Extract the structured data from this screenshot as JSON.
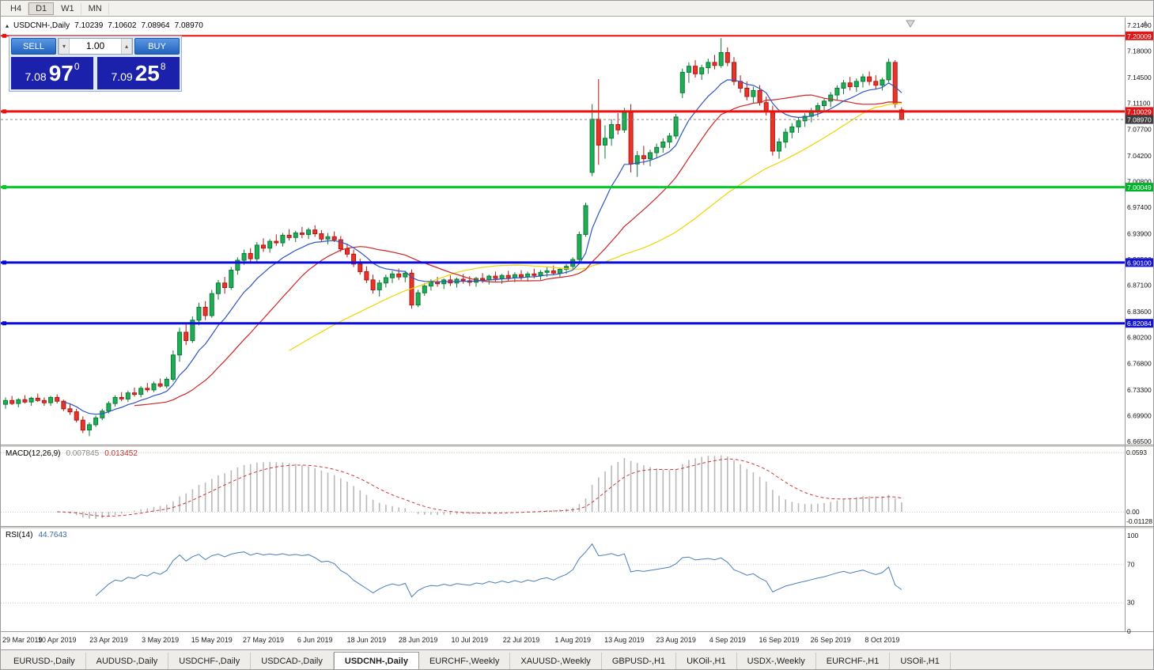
{
  "toolbar": {
    "timeframes": [
      "H4",
      "D1",
      "W1",
      "MN"
    ],
    "active": "D1"
  },
  "header": {
    "symbol": "USDCNH-,Daily",
    "open": "7.10239",
    "high": "7.10602",
    "low": "7.08964",
    "close": "7.08970"
  },
  "trade_panel": {
    "sell_label": "SELL",
    "buy_label": "BUY",
    "volume": "1.00",
    "sell_price": {
      "prefix": "7.08",
      "big": "97",
      "sup": "0"
    },
    "buy_price": {
      "prefix": "7.09",
      "big": "25",
      "sup": "8"
    }
  },
  "price_axis": {
    "labels": [
      "7.21400",
      "7.18000",
      "7.14500",
      "7.11100",
      "7.07700",
      "7.04200",
      "7.00800",
      "6.97400",
      "6.93900",
      "6.90500",
      "6.87100",
      "6.83600",
      "6.80200",
      "6.76800",
      "6.73300",
      "6.69900",
      "6.66500"
    ],
    "tags": [
      {
        "text": "7.20009",
        "price": 7.20009,
        "color": "#e01515"
      },
      {
        "text": "7.10029",
        "price": 7.10029,
        "color": "#e01515"
      },
      {
        "text": "7.08970",
        "price": 7.0897,
        "color": "#3c3c3c"
      },
      {
        "text": "7.00049",
        "price": 7.00049,
        "color": "#00b42a"
      },
      {
        "text": "6.90100",
        "price": 6.901,
        "color": "#1515cf"
      },
      {
        "text": "6.82084",
        "price": 6.82084,
        "color": "#1515cf"
      }
    ]
  },
  "macd_panel": {
    "label": "MACD(12,26,9)",
    "value1": "0.007845",
    "value2": "0.013452",
    "axis": [
      "0.0593",
      "0.00",
      "-0.01128"
    ]
  },
  "rsi_panel": {
    "label": "RSI(14)",
    "value": "44.7643",
    "axis": [
      "100",
      "70",
      "30",
      "0"
    ]
  },
  "date_axis": [
    "29 Mar 2019",
    "10 Apr 2019",
    "23 Apr 2019",
    "3 May 2019",
    "15 May 2019",
    "27 May 2019",
    "6 Jun 2019",
    "18 Jun 2019",
    "28 Jun 2019",
    "10 Jul 2019",
    "22 Jul 2019",
    "1 Aug 2019",
    "13 Aug 2019",
    "23 Aug 2019",
    "4 Sep 2019",
    "16 Sep 2019",
    "26 Sep 2019",
    "8 Oct 2019"
  ],
  "tabs": [
    {
      "label": "EURUSD-,Daily",
      "active": false
    },
    {
      "label": "AUDUSD-,Daily",
      "active": false
    },
    {
      "label": "USDCHF-,Daily",
      "active": false
    },
    {
      "label": "USDCAD-,Daily",
      "active": false
    },
    {
      "label": "USDCNH-,Daily",
      "active": true
    },
    {
      "label": "EURCHF-,Weekly",
      "active": false
    },
    {
      "label": "XAUUSD-,Weekly",
      "active": false
    },
    {
      "label": "GBPUSD-,H1",
      "active": false
    },
    {
      "label": "UKOil-,H1",
      "active": false
    },
    {
      "label": "USDX-,Weekly",
      "active": false
    },
    {
      "label": "EURCHF-,H1",
      "active": false
    },
    {
      "label": "USOil-,H1",
      "active": false
    }
  ],
  "chart_data": {
    "type": "candlestick",
    "symbol": "USDCNH",
    "timeframe": "Daily",
    "ylim": [
      6.665,
      7.214
    ],
    "date_labels_every": 8,
    "colors": {
      "up_fill": "#1fae55",
      "up_border": "#0c7a37",
      "down_fill": "#e8352b",
      "down_border": "#b31410",
      "macd_bar": "#b9b9b9",
      "macd_signal": "#d03838",
      "rsi_line": "#4a7ebb"
    },
    "moving_averages": [
      {
        "type": "ema",
        "period": 10,
        "color": "#2e55c5"
      },
      {
        "type": "sma",
        "period": 21,
        "color": "#cf2525"
      },
      {
        "type": "sma",
        "period": 45,
        "color": "#eed500"
      }
    ],
    "hlines": [
      {
        "price": 7.20009,
        "color": "#ee0f0f",
        "width": 2
      },
      {
        "price": 7.10029,
        "color": "#ee0f0f",
        "width": 3
      },
      {
        "price": 7.00049,
        "color": "#00cc22",
        "width": 3
      },
      {
        "price": 6.901,
        "color": "#0a0ae0",
        "width": 3
      },
      {
        "price": 6.82084,
        "color": "#0a0ae0",
        "width": 3
      }
    ],
    "current_price_line": {
      "price": 7.0897,
      "color": "#8a8a8a"
    },
    "indicators": {
      "macd": {
        "fast": 12,
        "slow": 26,
        "signal": 9,
        "range": [
          -0.01128,
          0.0593
        ]
      },
      "rsi": {
        "period": 14,
        "range": [
          0,
          100
        ],
        "levels": [
          70,
          30
        ]
      }
    },
    "candles": [
      [
        6.714,
        6.723,
        6.708,
        6.719
      ],
      [
        6.719,
        6.725,
        6.713,
        6.715
      ],
      [
        6.715,
        6.722,
        6.71,
        6.72
      ],
      [
        6.72,
        6.726,
        6.715,
        6.717
      ],
      [
        6.717,
        6.724,
        6.712,
        6.722
      ],
      [
        6.722,
        6.728,
        6.717,
        6.719
      ],
      [
        6.719,
        6.723,
        6.712,
        6.716
      ],
      [
        6.716,
        6.725,
        6.712,
        6.723
      ],
      [
        6.723,
        6.727,
        6.715,
        6.718
      ],
      [
        6.718,
        6.72,
        6.705,
        6.708
      ],
      [
        6.708,
        6.715,
        6.7,
        6.704
      ],
      [
        6.704,
        6.708,
        6.69,
        6.693
      ],
      [
        6.693,
        6.698,
        6.676,
        6.68
      ],
      [
        6.68,
        6.69,
        6.672,
        6.687
      ],
      [
        6.687,
        6.699,
        6.684,
        6.696
      ],
      [
        6.696,
        6.708,
        6.693,
        6.705
      ],
      [
        6.705,
        6.718,
        6.702,
        6.715
      ],
      [
        6.715,
        6.726,
        6.711,
        6.723
      ],
      [
        6.723,
        6.73,
        6.718,
        6.721
      ],
      [
        6.721,
        6.732,
        6.717,
        6.729
      ],
      [
        6.729,
        6.736,
        6.724,
        6.727
      ],
      [
        6.727,
        6.738,
        6.723,
        6.735
      ],
      [
        6.735,
        6.742,
        6.73,
        6.733
      ],
      [
        6.733,
        6.744,
        6.73,
        6.741
      ],
      [
        6.741,
        6.748,
        6.736,
        6.738
      ],
      [
        6.738,
        6.75,
        6.735,
        6.747
      ],
      [
        6.747,
        6.785,
        6.744,
        6.779
      ],
      [
        6.779,
        6.815,
        6.77,
        6.809
      ],
      [
        6.809,
        6.82,
        6.792,
        6.798
      ],
      [
        6.798,
        6.83,
        6.795,
        6.825
      ],
      [
        6.825,
        6.848,
        6.818,
        6.842
      ],
      [
        6.842,
        6.85,
        6.825,
        6.831
      ],
      [
        6.831,
        6.865,
        6.828,
        6.86
      ],
      [
        6.86,
        6.878,
        6.852,
        6.874
      ],
      [
        6.874,
        6.882,
        6.86,
        6.868
      ],
      [
        6.868,
        6.895,
        6.865,
        6.891
      ],
      [
        6.891,
        6.908,
        6.885,
        6.904
      ],
      [
        6.904,
        6.918,
        6.898,
        6.913
      ],
      [
        6.913,
        6.92,
        6.9,
        6.906
      ],
      [
        6.906,
        6.928,
        6.902,
        6.924
      ],
      [
        6.924,
        6.933,
        6.915,
        6.92
      ],
      [
        6.92,
        6.932,
        6.914,
        6.929
      ],
      [
        6.929,
        6.938,
        6.923,
        6.927
      ],
      [
        6.927,
        6.94,
        6.922,
        6.937
      ],
      [
        6.937,
        6.945,
        6.93,
        6.934
      ],
      [
        6.934,
        6.943,
        6.928,
        6.94
      ],
      [
        6.94,
        6.948,
        6.933,
        6.938
      ],
      [
        6.938,
        6.947,
        6.932,
        6.944
      ],
      [
        6.944,
        6.95,
        6.935,
        6.939
      ],
      [
        6.939,
        6.944,
        6.928,
        6.932
      ],
      [
        6.932,
        6.94,
        6.925,
        6.935
      ],
      [
        6.935,
        6.942,
        6.928,
        6.931
      ],
      [
        6.931,
        6.936,
        6.915,
        6.919
      ],
      [
        6.919,
        6.926,
        6.908,
        6.912
      ],
      [
        6.912,
        6.918,
        6.895,
        6.899
      ],
      [
        6.899,
        6.906,
        6.885,
        6.889
      ],
      [
        6.889,
        6.896,
        6.874,
        6.878
      ],
      [
        6.878,
        6.885,
        6.86,
        6.865
      ],
      [
        6.865,
        6.878,
        6.856,
        6.874
      ],
      [
        6.874,
        6.885,
        6.868,
        6.881
      ],
      [
        6.881,
        6.89,
        6.874,
        6.886
      ],
      [
        6.886,
        6.893,
        6.878,
        6.882
      ],
      [
        6.882,
        6.89,
        6.875,
        6.887
      ],
      [
        6.887,
        6.892,
        6.84,
        6.845
      ],
      [
        6.845,
        6.865,
        6.842,
        6.861
      ],
      [
        6.861,
        6.874,
        6.857,
        6.87
      ],
      [
        6.87,
        6.879,
        6.864,
        6.875
      ],
      [
        6.875,
        6.882,
        6.869,
        6.873
      ],
      [
        6.873,
        6.88,
        6.866,
        6.878
      ],
      [
        6.878,
        6.884,
        6.87,
        6.874
      ],
      [
        6.874,
        6.881,
        6.868,
        6.879
      ],
      [
        6.879,
        6.886,
        6.873,
        6.877
      ],
      [
        6.877,
        6.883,
        6.87,
        6.875
      ],
      [
        6.875,
        6.882,
        6.869,
        6.88
      ],
      [
        6.88,
        6.887,
        6.874,
        6.878
      ],
      [
        6.878,
        6.885,
        6.872,
        6.883
      ],
      [
        6.883,
        6.889,
        6.876,
        6.88
      ],
      [
        6.88,
        6.886,
        6.873,
        6.884
      ],
      [
        6.884,
        6.89,
        6.877,
        6.881
      ],
      [
        6.881,
        6.888,
        6.875,
        6.885
      ],
      [
        6.885,
        6.891,
        6.878,
        6.882
      ],
      [
        6.882,
        6.889,
        6.876,
        6.886
      ],
      [
        6.886,
        6.893,
        6.88,
        6.884
      ],
      [
        6.884,
        6.891,
        6.878,
        6.888
      ],
      [
        6.888,
        6.895,
        6.882,
        6.89
      ],
      [
        6.89,
        6.897,
        6.884,
        6.887
      ],
      [
        6.887,
        6.894,
        6.881,
        6.892
      ],
      [
        6.892,
        6.899,
        6.886,
        6.896
      ],
      [
        6.896,
        6.908,
        6.892,
        6.905
      ],
      [
        6.905,
        6.942,
        6.902,
        6.938
      ],
      [
        6.938,
        6.98,
        6.935,
        6.976
      ],
      [
        7.02,
        7.11,
        7.015,
        7.09
      ],
      [
        7.09,
        7.143,
        7.03,
        7.056
      ],
      [
        7.056,
        7.082,
        7.038,
        7.065
      ],
      [
        7.065,
        7.09,
        7.055,
        7.083
      ],
      [
        7.083,
        7.098,
        7.07,
        7.076
      ],
      [
        7.076,
        7.105,
        7.072,
        7.099
      ],
      [
        7.099,
        7.11,
        7.02,
        7.031
      ],
      [
        7.031,
        7.048,
        7.014,
        7.042
      ],
      [
        7.042,
        7.055,
        7.03,
        7.038
      ],
      [
        7.038,
        7.05,
        7.028,
        7.046
      ],
      [
        7.046,
        7.058,
        7.039,
        7.053
      ],
      [
        7.053,
        7.065,
        7.046,
        7.06
      ],
      [
        7.06,
        7.072,
        7.052,
        7.068
      ],
      [
        7.068,
        7.097,
        7.064,
        7.093
      ],
      [
        7.125,
        7.157,
        7.118,
        7.152
      ],
      [
        7.152,
        7.165,
        7.138,
        7.16
      ],
      [
        7.16,
        7.168,
        7.145,
        7.15
      ],
      [
        7.15,
        7.162,
        7.142,
        7.158
      ],
      [
        7.158,
        7.17,
        7.15,
        7.165
      ],
      [
        7.165,
        7.175,
        7.156,
        7.161
      ],
      [
        7.161,
        7.197,
        7.158,
        7.178
      ],
      [
        7.178,
        7.185,
        7.16,
        7.165
      ],
      [
        7.165,
        7.172,
        7.135,
        7.14
      ],
      [
        7.14,
        7.148,
        7.125,
        7.131
      ],
      [
        7.131,
        7.14,
        7.115,
        7.12
      ],
      [
        7.12,
        7.133,
        7.112,
        7.128
      ],
      [
        7.128,
        7.135,
        7.108,
        7.112
      ],
      [
        7.112,
        7.12,
        7.095,
        7.1
      ],
      [
        7.1,
        7.108,
        7.042,
        7.048
      ],
      [
        7.048,
        7.065,
        7.038,
        7.06
      ],
      [
        7.06,
        7.078,
        7.052,
        7.073
      ],
      [
        7.073,
        7.085,
        7.065,
        7.08
      ],
      [
        7.08,
        7.092,
        7.072,
        7.088
      ],
      [
        7.088,
        7.098,
        7.08,
        7.094
      ],
      [
        7.094,
        7.105,
        7.086,
        7.101
      ],
      [
        7.101,
        7.112,
        7.093,
        7.108
      ],
      [
        7.108,
        7.118,
        7.1,
        7.114
      ],
      [
        7.114,
        7.126,
        7.106,
        7.122
      ],
      [
        7.122,
        7.135,
        7.115,
        7.131
      ],
      [
        7.131,
        7.142,
        7.123,
        7.138
      ],
      [
        7.138,
        7.146,
        7.128,
        7.133
      ],
      [
        7.133,
        7.144,
        7.126,
        7.14
      ],
      [
        7.14,
        7.15,
        7.132,
        7.146
      ],
      [
        7.146,
        7.153,
        7.135,
        7.14
      ],
      [
        7.14,
        7.148,
        7.13,
        7.135
      ],
      [
        7.135,
        7.145,
        7.128,
        7.142
      ],
      [
        7.142,
        7.17,
        7.139,
        7.165
      ],
      [
        7.165,
        7.168,
        7.105,
        7.11
      ],
      [
        7.10239,
        7.10602,
        7.08964,
        7.0897
      ]
    ]
  }
}
